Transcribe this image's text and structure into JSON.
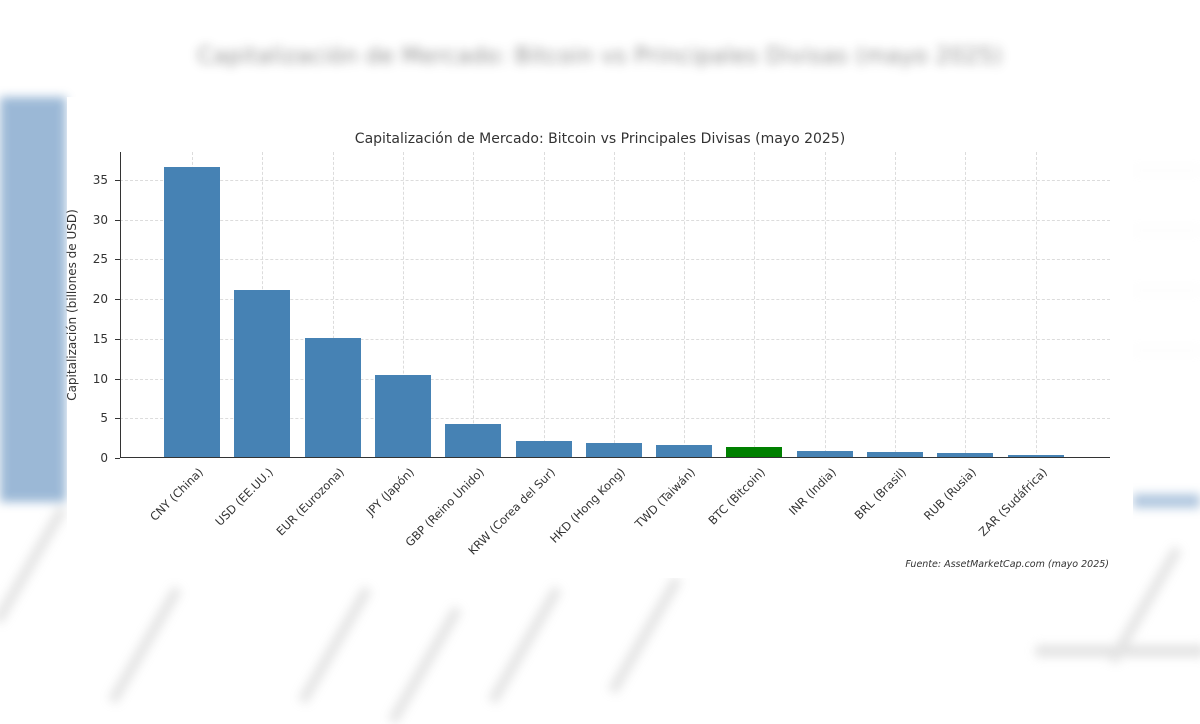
{
  "background": {
    "blurred_title": "Capitalización de Mercado: Bitcoin vs Principales Divisas (mayo 2025)"
  },
  "colors": {
    "bar_default": "#4682b4",
    "bar_highlight": "#008000",
    "axis": "#333333",
    "grid": "#dcdcdc"
  },
  "chart_data": {
    "type": "bar",
    "title": "Capitalización de Mercado: Bitcoin vs Principales Divisas (mayo 2025)",
    "xlabel": "",
    "ylabel": "Capitalización (billones de USD)",
    "ylim": [
      0,
      38.5
    ],
    "yticks": [
      0,
      5,
      10,
      15,
      20,
      25,
      30,
      35
    ],
    "grid": true,
    "legend": null,
    "categories": [
      "CNY (China)",
      "USD (EE.UU.)",
      "EUR (Eurozona)",
      "JPY (Japón)",
      "GBP (Reino Unido)",
      "KRW (Corea del Sur)",
      "HKD (Hong Kong)",
      "TWD (Taiwán)",
      "BTC (Bitcoin)",
      "INR (India)",
      "BRL (Brasil)",
      "RUB (Rusia)",
      "ZAR (Sudáfrica)"
    ],
    "values": [
      36.6,
      21.1,
      15.1,
      10.5,
      4.3,
      2.2,
      1.9,
      1.6,
      1.4,
      0.9,
      0.75,
      0.65,
      0.4
    ],
    "highlight": "BTC (Bitcoin)",
    "annotation": "Fuente: AssetMarketCap.com (mayo 2025)"
  }
}
